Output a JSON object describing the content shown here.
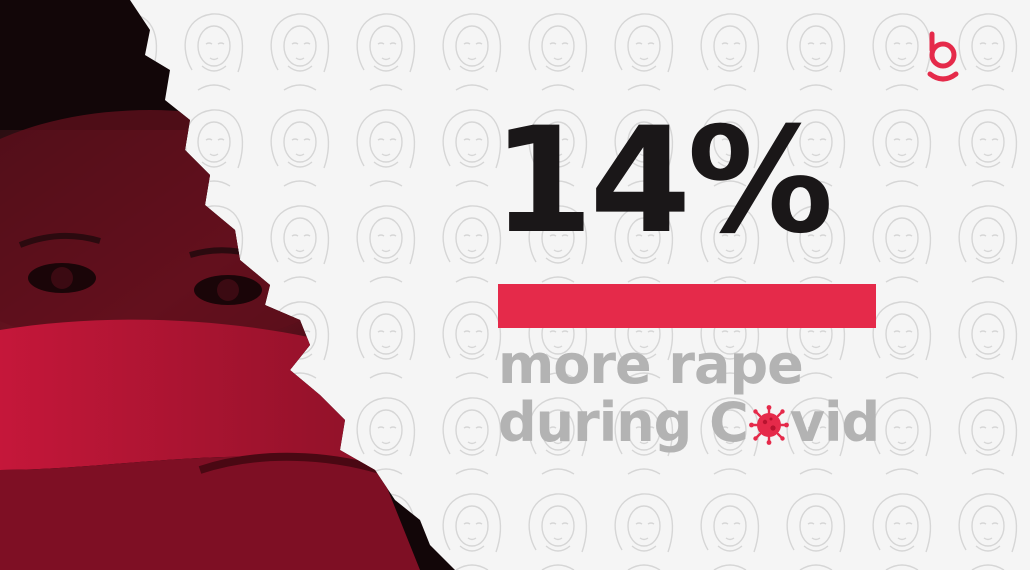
{
  "stat": {
    "value": "14%",
    "line1": "more rape",
    "line2_start": "during C",
    "line2_end": "vid"
  },
  "icons": {
    "logo": "brand-logo-icon",
    "virus": "coronavirus-icon"
  },
  "colors": {
    "accent": "#e52a4a",
    "stat_text": "#1a1718",
    "caption_text": "#b3b3b3",
    "background": "#f5f5f5"
  }
}
